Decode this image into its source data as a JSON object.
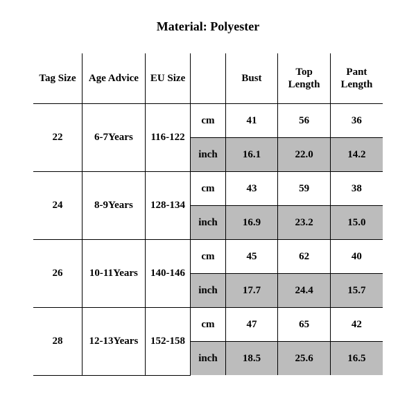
{
  "title": "Material: Polyester",
  "table": {
    "columns": [
      "Tag Size",
      "Age Advice",
      "EU Size",
      "",
      "Bust",
      "Top Length",
      "Pant Length"
    ],
    "column_widths_pct": [
      14,
      18,
      13,
      10,
      15,
      15,
      15
    ],
    "units": [
      "cm",
      "inch"
    ],
    "rows": [
      {
        "tag": "22",
        "age": "6-7Years",
        "eu": "116-122",
        "cm": [
          "41",
          "56",
          "36"
        ],
        "inch": [
          "16.1",
          "22.0",
          "14.2"
        ]
      },
      {
        "tag": "24",
        "age": "8-9Years",
        "eu": "128-134",
        "cm": [
          "43",
          "59",
          "38"
        ],
        "inch": [
          "16.9",
          "23.2",
          "15.0"
        ]
      },
      {
        "tag": "26",
        "age": "10-11Years",
        "eu": "140-146",
        "cm": [
          "45",
          "62",
          "40"
        ],
        "inch": [
          "17.7",
          "24.4",
          "15.7"
        ]
      },
      {
        "tag": "28",
        "age": "12-13Years",
        "eu": "152-158",
        "cm": [
          "47",
          "65",
          "42"
        ],
        "inch": [
          "18.5",
          "25.6",
          "16.5"
        ]
      }
    ],
    "header_fontsize_pt": 11,
    "cell_fontsize_pt": 11,
    "border_color": "#000000",
    "shaded_color": "#bcbcbc",
    "background_color": "#ffffff",
    "font_family": "Times New Roman"
  }
}
